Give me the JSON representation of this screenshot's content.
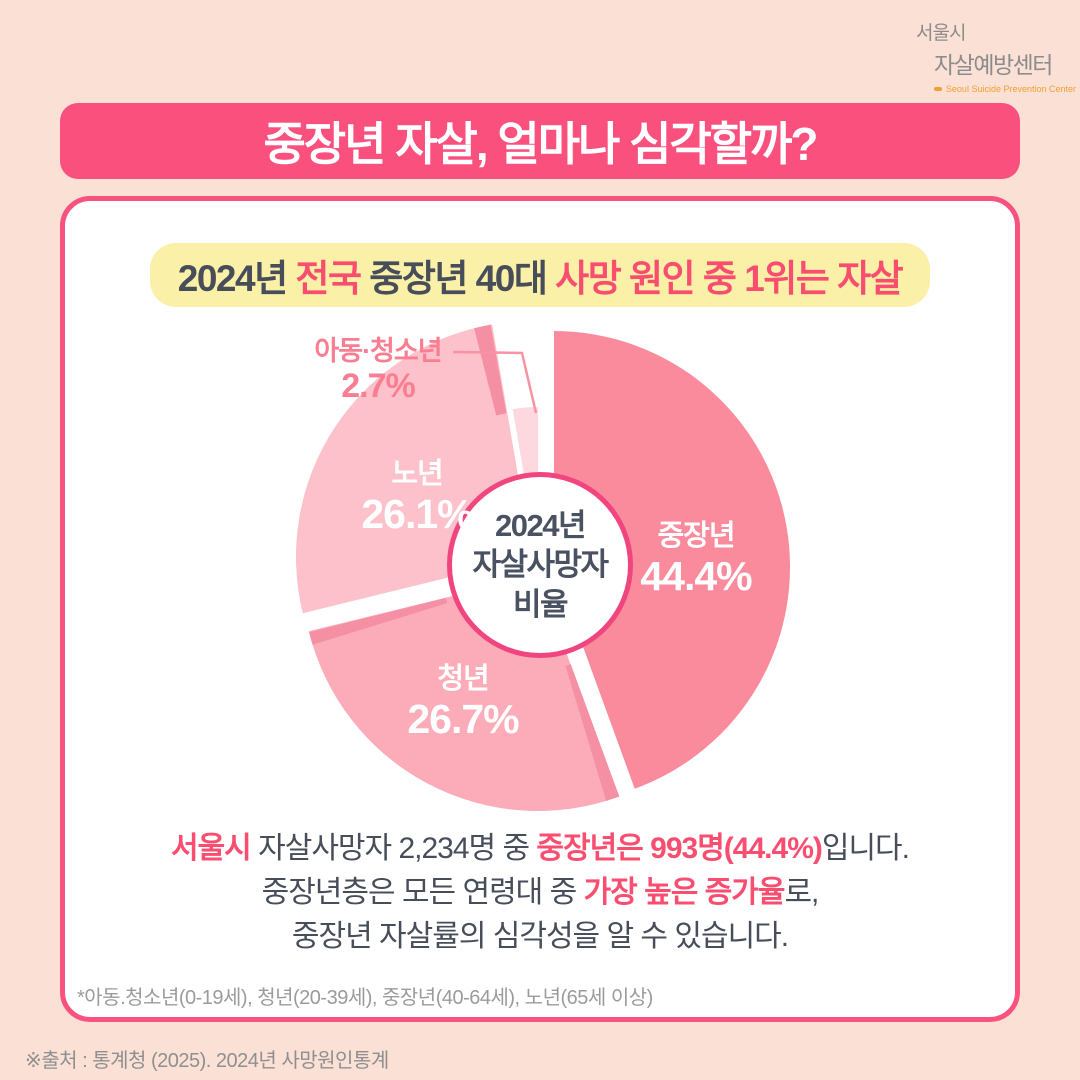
{
  "logo": {
    "line1": "서울시",
    "line2": "자살예방센터",
    "subtitle": "Seoul Suicide Prevention Center"
  },
  "header": {
    "title": "중장년 자살, 얼마나 심각할까?"
  },
  "card": {
    "title": {
      "seg1": "2024년 ",
      "seg2": "전국",
      "seg3": " 중장년 40대 ",
      "seg4": "사망 원인 중 1위는 자살"
    },
    "center_label": {
      "line1": "2024년",
      "line2": "자살사망자",
      "line3": "비율"
    },
    "body": {
      "line1": {
        "seg1": "서울시",
        "seg2": " 자살사망자 2,234명 중 ",
        "seg3": "중장년은 993명(44.4%)",
        "seg4": "입니다."
      },
      "line2": {
        "seg1": "중장년층은 모든 연령대 중 ",
        "seg2": "가장 높은 증가율",
        "seg3": "로,"
      },
      "line3": "중장년 자살률의 심각성을 알 수 있습니다."
    },
    "footnote": "*아동.청소년(0-19세), 청년(20-39세), 중장년(40-64세), 노년(65세 이상)"
  },
  "source": "※출처 : 통계청 (2025). 2024년 사망원인통계",
  "colors": {
    "page_bg": "#FBE0D5",
    "brand_pink": "#F9507E",
    "accent_text_pink": "#F94E70",
    "highlight_yellow": "#FBF0A7",
    "dark_text": "#474E5A",
    "center_ring_pink": "#F0457E",
    "logo_orange": "#F0A032"
  },
  "chart_data": {
    "type": "pie",
    "title": "2024년 자살사망자 비율",
    "legend_position": "on-slice",
    "start_angle_deg": 0,
    "clockwise": true,
    "categories": [
      "중장년",
      "청년",
      "노년",
      "아동·청소년"
    ],
    "values": [
      44.4,
      26.7,
      26.1,
      2.7
    ],
    "slices": [
      {
        "label": "중장년",
        "slug": "middle-aged",
        "value": 44.4,
        "pct_label": "44.4%",
        "color": "#FA8B9C",
        "offset": [
          14,
          2
        ],
        "radius": 236
      },
      {
        "label": "청년",
        "slug": "youth",
        "value": 26.7,
        "pct_label": "26.7%",
        "color": "#FBACB8",
        "offset": [
          -2,
          10
        ],
        "radius": 236
      },
      {
        "label": "노년",
        "slug": "elderly",
        "value": 26.1,
        "pct_label": "26.1%",
        "color": "#FCC1CA",
        "offset": [
          -8,
          -8
        ],
        "radius": 236
      },
      {
        "label": "아동·청소년",
        "slug": "children-teens",
        "value": 2.7,
        "pct_label": "2.7%",
        "color": "#FDD9DF",
        "offset": [
          -2,
          -8
        ],
        "radius": 150
      }
    ],
    "walls": [
      {
        "from": 159.84,
        "to": 163.2,
        "color": "#F590A4",
        "offset": [
          -2,
          10
        ],
        "r0": 95,
        "r1": 236
      },
      {
        "from": 252.8,
        "to": 255.96,
        "color": "#F590A4",
        "offset": [
          -2,
          10
        ],
        "r0": 95,
        "r1": 236
      },
      {
        "from": 345.8,
        "to": 349.92,
        "color": "#F590A4",
        "offset": [
          -8,
          -8
        ],
        "r0": 146,
        "r1": 236
      }
    ]
  }
}
